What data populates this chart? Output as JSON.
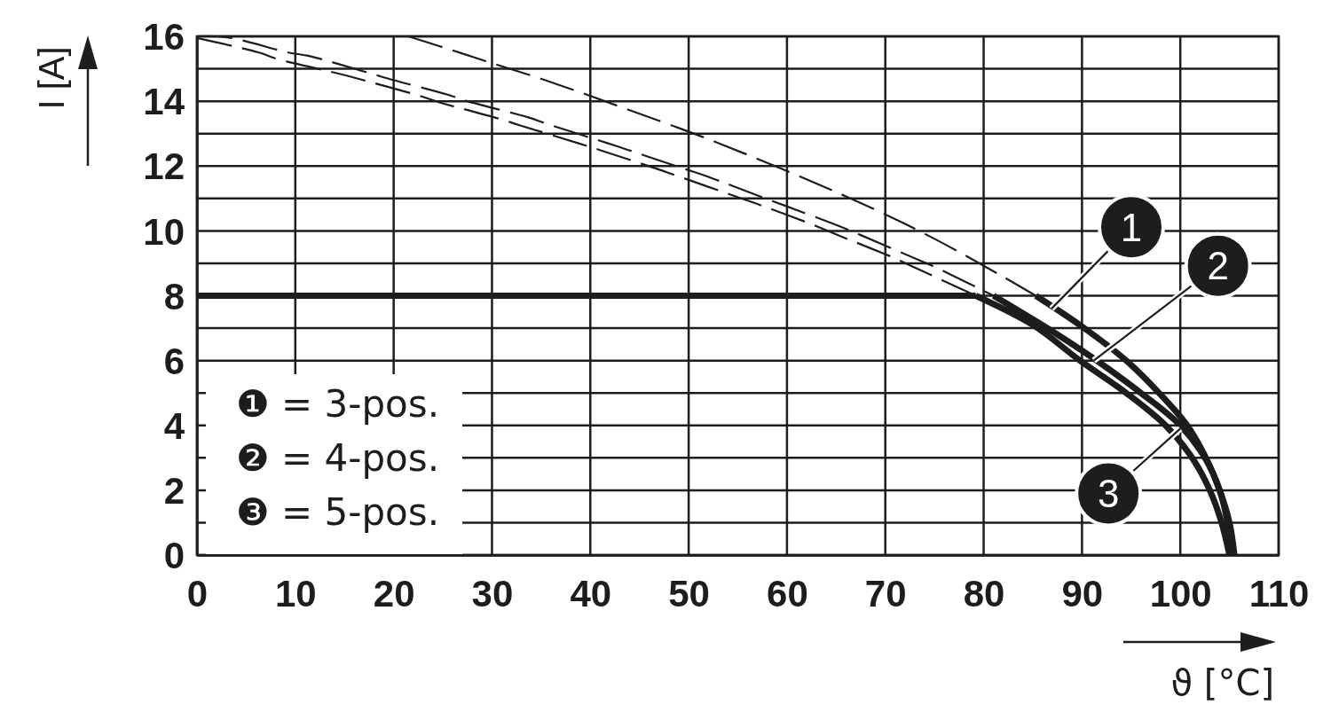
{
  "chart_data": {
    "type": "line",
    "xlabel": "ϑ [°C]",
    "ylabel": "I [A]",
    "xlim": [
      0,
      110
    ],
    "xticks": [
      0,
      10,
      20,
      30,
      40,
      50,
      60,
      70,
      80,
      90,
      100,
      110
    ],
    "ylim": [
      0,
      16
    ],
    "yticks": [
      0,
      {
        "value": 1,
        "label": null
      },
      2,
      {
        "value": 3,
        "label": null
      },
      4,
      {
        "value": 5,
        "label": null
      },
      6,
      {
        "value": 7,
        "label": null
      },
      8,
      {
        "value": 9,
        "label": null
      },
      10,
      {
        "value": 11,
        "label": null
      },
      12,
      {
        "value": 13,
        "label": null
      },
      14,
      {
        "value": 15,
        "label": null
      },
      16
    ],
    "grid": true,
    "series": [
      {
        "color": "#1d1d1b",
        "line_style": "dashed",
        "x": [
          21.5,
          27.2,
          29.1,
          35.3,
          43.3,
          53.1,
          66.9,
          74.4,
          81.9,
          85.3
        ],
        "values": [
          16,
          15.45,
          15.26,
          14.66,
          13.8,
          12.7,
          10.94,
          9.85,
          8.6,
          8
        ]
      },
      {
        "color": "#1d1d1b",
        "line_style": "dashed",
        "x": [
          0,
          3.1,
          9.3,
          11.3,
          17.4,
          19.4,
          25.5,
          27.5,
          33.7,
          35.6,
          41.8,
          43.8,
          49.7,
          51.7,
          57.8,
          59.6,
          65.7,
          67.5,
          73.4,
          75.3,
          81
        ],
        "values": [
          16,
          15.97,
          15.5,
          15.4,
          14.88,
          14.7,
          14.2,
          14,
          13.5,
          13.3,
          12.7,
          12.5,
          11.9,
          11.7,
          11,
          10.8,
          10.1,
          9.87,
          9.1,
          8.85,
          8
        ]
      },
      {
        "color": "#1d1d1b",
        "line_style": "dashed",
        "x": [
          0,
          6.3,
          8.2,
          14.4,
          16.3,
          22.6,
          24.6,
          30.7,
          32.8,
          38.8,
          40.9,
          46.9,
          48.8,
          54.9,
          56.8,
          62.8,
          64.6,
          70.7,
          72.5,
          79.2
        ],
        "values": [
          15.95,
          15.5,
          15.3,
          14.85,
          14.7,
          14.17,
          13.97,
          13.46,
          13.26,
          12.7,
          12.5,
          11.9,
          11.7,
          11.05,
          10.85,
          10.17,
          9.94,
          9.19,
          8.94,
          8
        ]
      },
      {
        "color": "#1d1d1b",
        "line_style": "solid",
        "x": [
          85.3,
          90,
          94.5,
          98,
          100.7,
          102.6,
          104,
          105,
          105.5
        ],
        "values": [
          8,
          7.05,
          6,
          4.95,
          4,
          3,
          2,
          1,
          0
        ]
      },
      {
        "color": "#1d1d1b",
        "line_style": "solid",
        "x": [
          81,
          87,
          91.5,
          96,
          100,
          102.5,
          104,
          104.8,
          105.2
        ],
        "values": [
          8,
          6.9,
          6,
          5,
          4,
          3,
          2,
          1,
          0
        ]
      },
      {
        "color": "#1d1d1b",
        "line_style": "solid",
        "x": [
          79.2,
          85,
          89.8,
          94.5,
          98.5,
          101.2,
          103,
          104.2,
          105
        ],
        "values": [
          8,
          7.1,
          6,
          5,
          4,
          3,
          2,
          1,
          0
        ]
      },
      {
        "color": "#1d1d1b",
        "line_style": "solid",
        "x": [
          0,
          79.2
        ],
        "values": [
          8,
          8
        ]
      }
    ],
    "annotations": [
      {
        "text": "1",
        "x": 86.9,
        "y": 7.6
      },
      {
        "text": "2",
        "x": 91.2,
        "y": 6.0
      },
      {
        "text": "3",
        "x": 100,
        "y": 3.9
      },
      "❶ = 3-pos.",
      "❷ = 4-pos.",
      "❸ = 5-pos."
    ]
  }
}
